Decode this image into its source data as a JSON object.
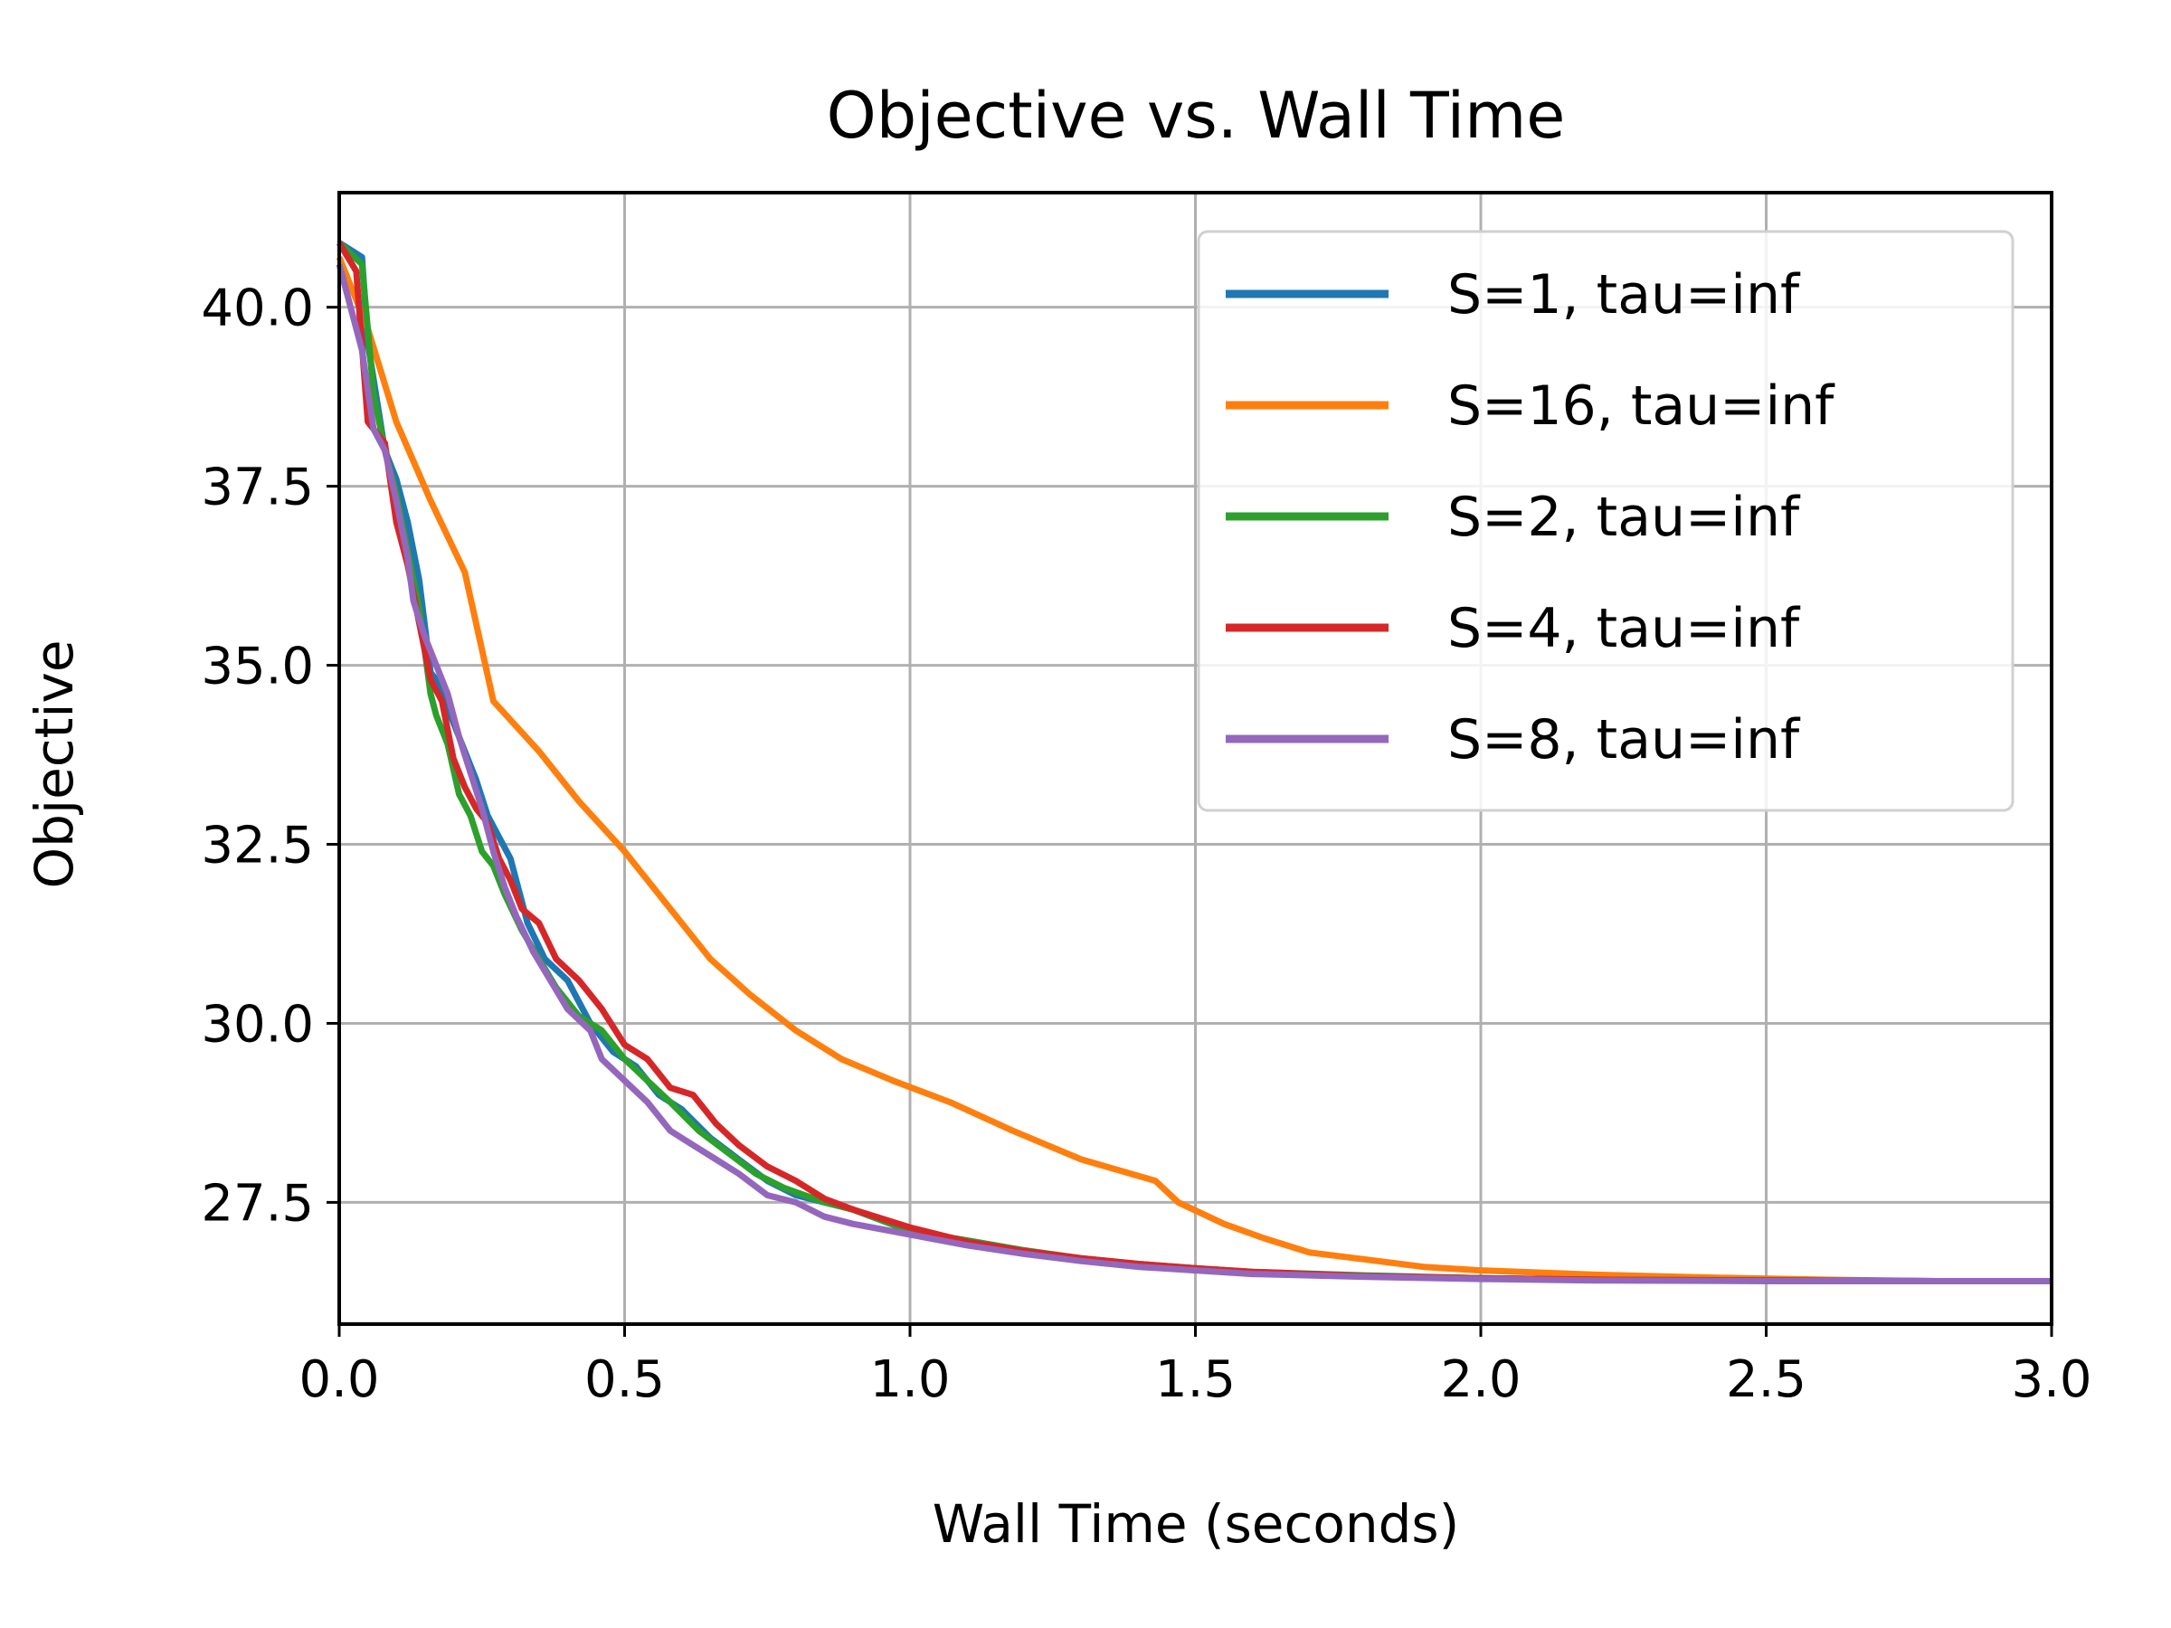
{
  "chart_data": {
    "type": "line",
    "title": "Objective vs. Wall Time",
    "xlabel": "Wall Time (seconds)",
    "ylabel": "Objective",
    "xlim": [
      0,
      3.0
    ],
    "ylim": [
      25.8,
      41.6
    ],
    "xticks": [
      0.0,
      0.5,
      1.0,
      1.5,
      2.0,
      2.5,
      3.0
    ],
    "xtick_labels": [
      "0.0",
      "0.5",
      "1.0",
      "1.5",
      "2.0",
      "2.5",
      "3.0"
    ],
    "yticks": [
      27.5,
      30.0,
      32.5,
      35.0,
      37.5,
      40.0
    ],
    "ytick_labels": [
      "27.5",
      "30.0",
      "32.5",
      "35.0",
      "37.5",
      "40.0"
    ],
    "grid": true,
    "legend_position": "top-right",
    "series": [
      {
        "name": "S=1, tau=inf",
        "color": "#1f77b4",
        "x": [
          0.0,
          0.04,
          0.05,
          0.08,
          0.1,
          0.12,
          0.14,
          0.16,
          0.17,
          0.18,
          0.2,
          0.22,
          0.24,
          0.26,
          0.28,
          0.3,
          0.33,
          0.36,
          0.4,
          0.44,
          0.48,
          0.52,
          0.56,
          0.6,
          0.65,
          0.7,
          0.75,
          0.8,
          0.85,
          0.9,
          1.0,
          1.1,
          1.2,
          1.3,
          1.4,
          1.5,
          1.6,
          1.8,
          2.0,
          2.2,
          2.5,
          2.8,
          3.0
        ],
        "y": [
          40.9,
          40.7,
          39.5,
          38.0,
          37.6,
          37.0,
          36.2,
          34.9,
          34.8,
          34.6,
          34.2,
          33.8,
          33.4,
          32.9,
          32.6,
          32.3,
          31.4,
          30.9,
          30.6,
          30.0,
          29.6,
          29.4,
          29.0,
          28.8,
          28.4,
          28.1,
          27.8,
          27.6,
          27.5,
          27.4,
          27.1,
          26.95,
          26.8,
          26.7,
          26.62,
          26.56,
          26.52,
          26.47,
          26.44,
          26.42,
          26.41,
          26.4,
          26.4
        ]
      },
      {
        "name": "S=16, tau=inf",
        "color": "#ff7f0e",
        "x": [
          0.0,
          0.02,
          0.05,
          0.1,
          0.16,
          0.22,
          0.27,
          0.35,
          0.42,
          0.5,
          0.58,
          0.65,
          0.72,
          0.8,
          0.88,
          0.97,
          1.07,
          1.18,
          1.3,
          1.43,
          1.47,
          1.55,
          1.62,
          1.7,
          1.8,
          1.9,
          2.0,
          2.2,
          2.4,
          2.6,
          2.8,
          3.0
        ],
        "y": [
          40.7,
          40.3,
          39.7,
          38.4,
          37.3,
          36.3,
          34.5,
          33.8,
          33.1,
          32.4,
          31.6,
          30.9,
          30.4,
          29.9,
          29.5,
          29.2,
          28.9,
          28.5,
          28.1,
          27.8,
          27.5,
          27.2,
          27.0,
          26.8,
          26.7,
          26.6,
          26.55,
          26.49,
          26.45,
          26.42,
          26.4,
          26.4
        ]
      },
      {
        "name": "S=2, tau=inf",
        "color": "#2ca02c",
        "x": [
          0.0,
          0.04,
          0.06,
          0.08,
          0.1,
          0.12,
          0.14,
          0.16,
          0.17,
          0.19,
          0.21,
          0.23,
          0.25,
          0.27,
          0.29,
          0.32,
          0.35,
          0.38,
          0.42,
          0.46,
          0.5,
          0.54,
          0.58,
          0.63,
          0.68,
          0.73,
          0.78,
          0.85,
          0.9,
          1.0,
          1.1,
          1.2,
          1.3,
          1.4,
          1.5,
          1.6,
          1.8,
          2.0,
          2.2,
          2.5,
          2.8,
          3.0
        ],
        "y": [
          40.9,
          40.6,
          38.8,
          38.0,
          37.4,
          36.6,
          35.8,
          34.6,
          34.3,
          33.9,
          33.2,
          32.9,
          32.4,
          32.2,
          31.8,
          31.3,
          30.9,
          30.5,
          30.1,
          29.9,
          29.5,
          29.2,
          28.9,
          28.5,
          28.2,
          27.9,
          27.7,
          27.5,
          27.4,
          27.1,
          26.97,
          26.83,
          26.72,
          26.64,
          26.58,
          26.53,
          26.48,
          26.44,
          26.42,
          26.41,
          26.4,
          26.4
        ]
      },
      {
        "name": "S=4, tau=inf",
        "color": "#d62728",
        "x": [
          0.0,
          0.03,
          0.05,
          0.08,
          0.1,
          0.12,
          0.14,
          0.16,
          0.18,
          0.2,
          0.22,
          0.24,
          0.26,
          0.28,
          0.3,
          0.32,
          0.35,
          0.38,
          0.42,
          0.46,
          0.5,
          0.54,
          0.58,
          0.62,
          0.66,
          0.7,
          0.75,
          0.8,
          0.85,
          0.9,
          1.0,
          1.1,
          1.2,
          1.3,
          1.4,
          1.5,
          1.6,
          1.8,
          2.0,
          2.2,
          2.5,
          2.8,
          3.0
        ],
        "y": [
          40.9,
          40.5,
          38.4,
          38.1,
          37.0,
          36.4,
          35.6,
          34.8,
          34.5,
          33.7,
          33.3,
          33.0,
          32.8,
          32.3,
          32.0,
          31.6,
          31.4,
          30.9,
          30.6,
          30.2,
          29.7,
          29.5,
          29.1,
          29.0,
          28.6,
          28.3,
          28.0,
          27.8,
          27.55,
          27.4,
          27.15,
          26.95,
          26.82,
          26.72,
          26.64,
          26.58,
          26.53,
          26.47,
          26.44,
          26.42,
          26.41,
          26.4,
          26.4
        ]
      },
      {
        "name": "S=8, tau=inf",
        "color": "#9467bd",
        "x": [
          0.0,
          0.02,
          0.04,
          0.06,
          0.08,
          0.1,
          0.12,
          0.13,
          0.15,
          0.17,
          0.19,
          0.21,
          0.23,
          0.25,
          0.27,
          0.29,
          0.31,
          0.34,
          0.37,
          0.4,
          0.44,
          0.46,
          0.5,
          0.54,
          0.58,
          0.62,
          0.66,
          0.7,
          0.75,
          0.8,
          0.85,
          0.9,
          1.0,
          1.1,
          1.2,
          1.3,
          1.4,
          1.5,
          1.6,
          1.8,
          2.0,
          2.2,
          2.5,
          2.8,
          3.0
        ],
        "y": [
          40.6,
          40.0,
          39.4,
          38.3,
          38.0,
          37.3,
          36.5,
          35.9,
          35.4,
          35.0,
          34.6,
          34.0,
          33.5,
          33.0,
          32.4,
          31.9,
          31.5,
          31.0,
          30.6,
          30.2,
          29.9,
          29.5,
          29.2,
          28.9,
          28.5,
          28.3,
          28.1,
          27.9,
          27.6,
          27.5,
          27.3,
          27.2,
          27.05,
          26.9,
          26.78,
          26.68,
          26.6,
          26.55,
          26.5,
          26.46,
          26.43,
          26.41,
          26.4,
          26.4,
          26.4
        ]
      }
    ]
  }
}
